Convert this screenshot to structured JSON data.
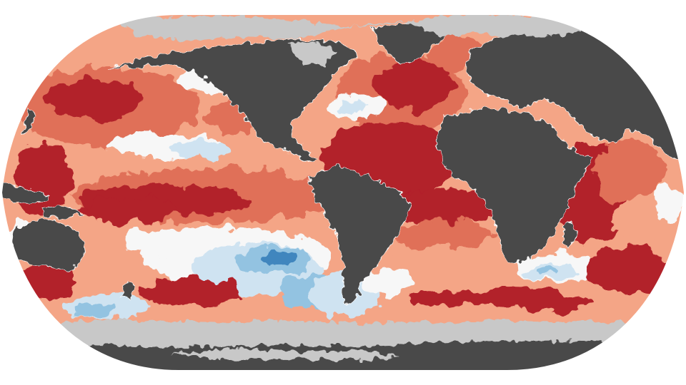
{
  "map": {
    "projection": "robinson",
    "layers": [
      "ocean-anomaly",
      "land",
      "ice"
    ],
    "colors": {
      "land": "#4a4a4a",
      "ice": "#c8c8c8",
      "background": "#ffffff",
      "coast_outline": "#ffffff",
      "anomaly_very_warm": "#b2202c",
      "anomaly_warm": "#e07058",
      "anomaly_slightly_warm": "#f4a586",
      "anomaly_mild_warm": "#fcd9c6",
      "anomaly_neutral": "#f7f7f7",
      "anomaly_slightly_cool": "#cfe3f1",
      "anomaly_cool": "#93c3e1",
      "anomaly_very_cool": "#3f86be"
    }
  }
}
